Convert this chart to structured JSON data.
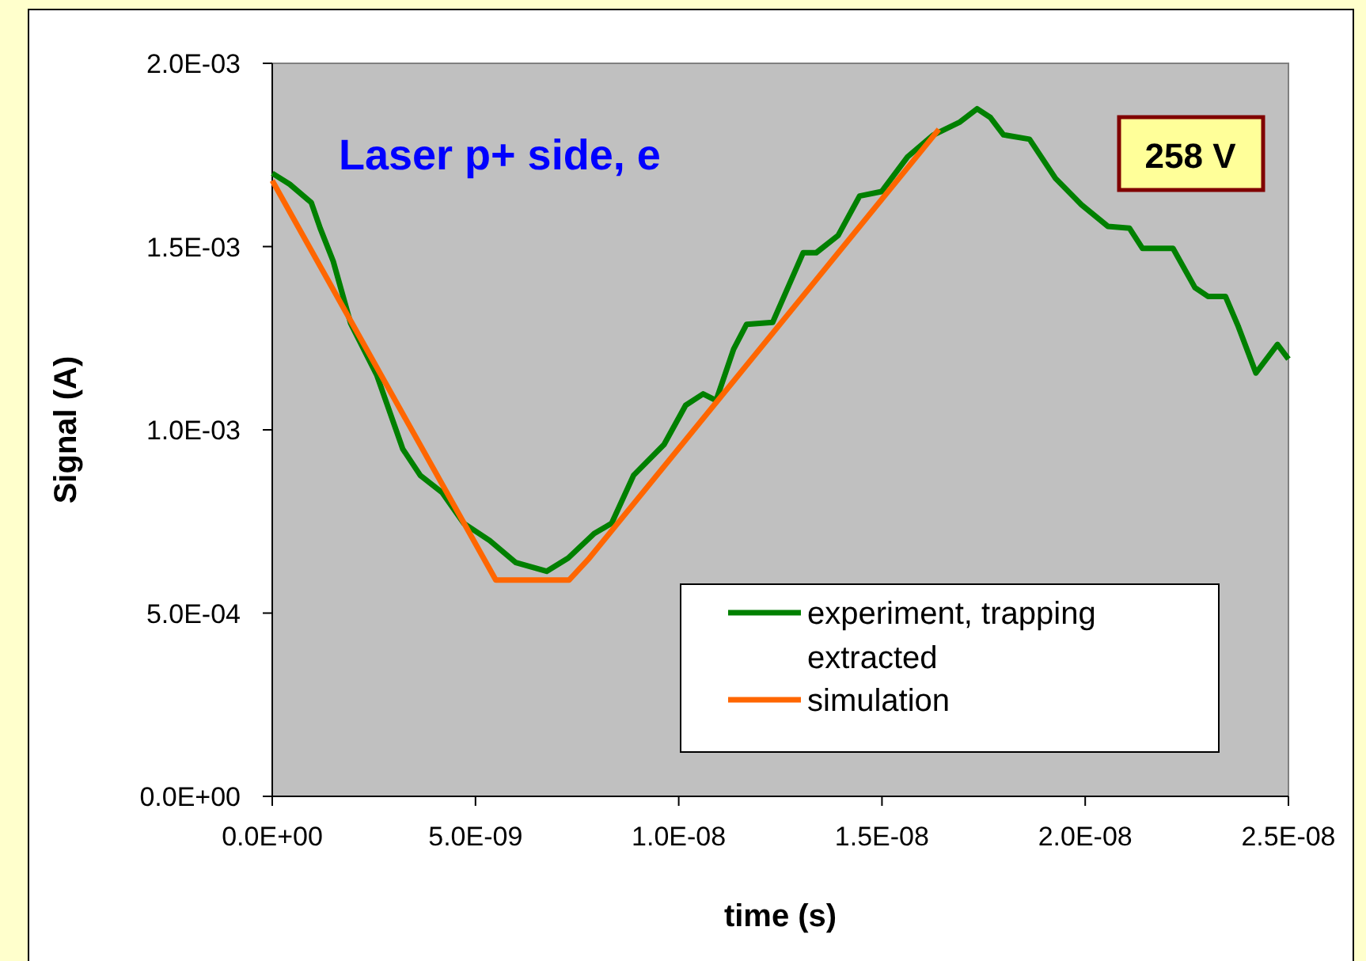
{
  "chart_data": {
    "type": "line",
    "xlabel": "time (s)",
    "ylabel": "Signal (A)",
    "annotations": [
      "Laser p+ side, e",
      "258 V"
    ],
    "xlim": [
      0,
      2.5e-08
    ],
    "ylim": [
      0,
      0.002
    ],
    "xticks": [
      {
        "value": 0,
        "label": "0.0E+00"
      },
      {
        "value": 5e-09,
        "label": "5.0E-09"
      },
      {
        "value": 1e-08,
        "label": "1.0E-08"
      },
      {
        "value": 1.5e-08,
        "label": "1.5E-08"
      },
      {
        "value": 2e-08,
        "label": "2.0E-08"
      },
      {
        "value": 2.5e-08,
        "label": "2.5E-08"
      }
    ],
    "yticks": [
      {
        "value": 0,
        "label": "0.0E+00"
      },
      {
        "value": 0.0005,
        "label": "5.0E-04"
      },
      {
        "value": 0.001,
        "label": "1.0E-03"
      },
      {
        "value": 0.0015,
        "label": "1.5E-03"
      },
      {
        "value": 0.002,
        "label": "2.0E-03"
      }
    ],
    "grid": false,
    "legend": "bottom right",
    "line_style": "solid",
    "series": [
      {
        "name": "experiment, trapping extracted",
        "color": "#008000",
        "x": [
          0,
          4.3e-10,
          9.6e-10,
          1.18e-09,
          1.5e-09,
          1.93e-09,
          2.57e-09,
          3.21e-09,
          3.64e-09,
          4.18e-09,
          4.71e-09,
          5.35e-09,
          5.99e-09,
          6.75e-09,
          7.28e-09,
          7.92e-09,
          8.35e-09,
          8.89e-09,
          9.64e-09,
          1.017e-08,
          1.06e-08,
          1.092e-08,
          1.135e-08,
          1.167e-08,
          1.231e-08,
          1.306e-08,
          1.338e-08,
          1.392e-08,
          1.445e-08,
          1.499e-08,
          1.563e-08,
          1.627e-08,
          1.692e-08,
          1.734e-08,
          1.767e-08,
          1.799e-08,
          1.863e-08,
          1.927e-08,
          1.991e-08,
          2.056e-08,
          2.109e-08,
          2.141e-08,
          2.216e-08,
          2.27e-08,
          2.302e-08,
          2.345e-08,
          2.377e-08,
          2.42e-08,
          2.473e-08,
          2.5e-08
        ],
        "values": [
          0.0017,
          0.00167,
          0.00162,
          0.00155,
          0.00146,
          0.00129,
          0.00115,
          0.000948,
          0.000876,
          0.000829,
          0.000745,
          0.000698,
          0.000638,
          0.000614,
          0.00065,
          0.000717,
          0.000745,
          0.000876,
          0.00096,
          0.001067,
          0.001098,
          0.00108,
          0.00122,
          0.001288,
          0.001293,
          0.001483,
          0.001483,
          0.00153,
          0.001638,
          0.00165,
          0.001745,
          0.001805,
          0.00184,
          0.001876,
          0.001852,
          0.001805,
          0.001793,
          0.001686,
          0.001614,
          0.001555,
          0.00155,
          0.001495,
          0.001495,
          0.001388,
          0.001364,
          0.001364,
          0.001281,
          0.001155,
          0.001233,
          0.001193
        ]
      },
      {
        "name": "simulation",
        "color": "#ff6600",
        "x": [
          0,
          5.5e-09,
          7.3e-09,
          7.8e-09,
          1.64e-08
        ],
        "values": [
          0.00168,
          0.00059,
          0.00059,
          0.00065,
          0.00182
        ]
      }
    ]
  }
}
